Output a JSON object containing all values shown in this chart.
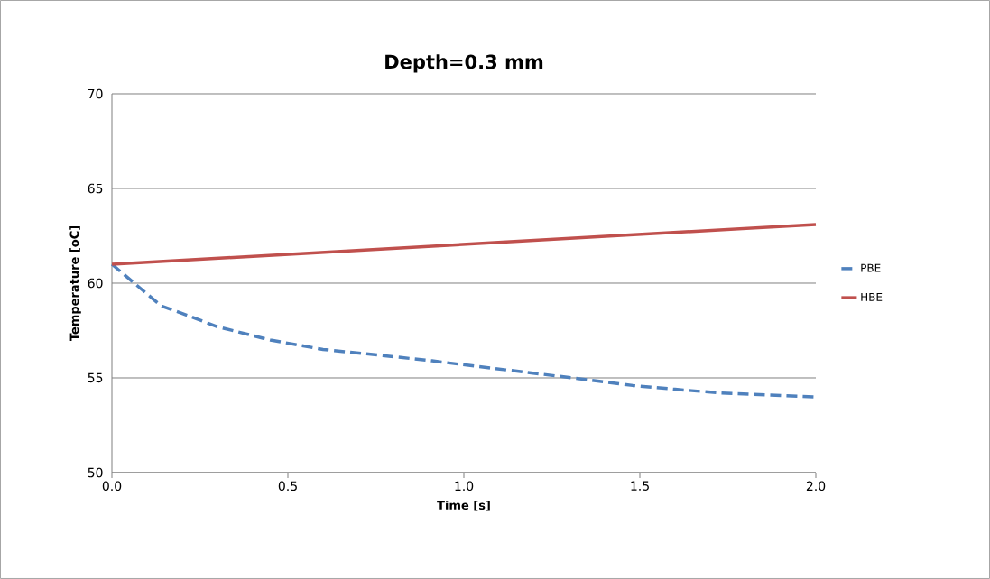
{
  "chart_data": {
    "type": "line",
    "title": "Depth=0.3 mm",
    "xlabel": "Time [s]",
    "ylabel": "Temperature [oC]",
    "xlim": [
      0,
      2
    ],
    "ylim": [
      50,
      70
    ],
    "xticks": [
      {
        "value": 0,
        "label": "0.0"
      },
      {
        "value": 0.5,
        "label": "0.5"
      },
      {
        "value": 1,
        "label": "1.0"
      },
      {
        "value": 1.5,
        "label": "1.5"
      },
      {
        "value": 2,
        "label": "2.0"
      }
    ],
    "yticks": [
      50,
      55,
      60,
      65,
      70
    ],
    "grid": "y",
    "legend": "right",
    "marker": "none",
    "series": [
      {
        "name": "PBE",
        "color": "#4f81bd",
        "line_style": "dashed",
        "x": [
          0,
          0.07,
          0.14,
          0.2,
          0.3,
          0.45,
          0.6,
          0.76,
          0.91,
          1.04,
          1.22,
          1.35,
          1.48,
          1.6,
          1.73,
          1.86,
          2.0
        ],
        "values": [
          61.0,
          59.9,
          58.8,
          58.4,
          57.7,
          57.0,
          56.5,
          56.2,
          55.9,
          55.6,
          55.2,
          54.9,
          54.6,
          54.4,
          54.2,
          54.1,
          54.0
        ]
      },
      {
        "name": "HBE",
        "color": "#c0504d",
        "line_style": "solid",
        "x": [
          0,
          2
        ],
        "values": [
          61.0,
          63.1
        ]
      }
    ]
  }
}
